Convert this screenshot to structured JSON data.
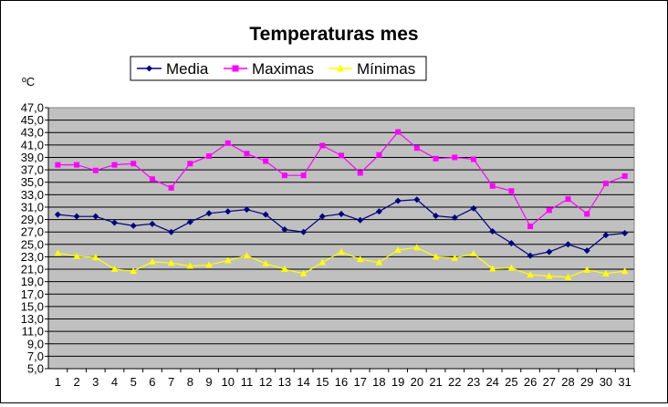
{
  "chart_data": {
    "type": "line",
    "title": "Temperaturas mes",
    "ylabel": "ºC",
    "xlabel": "",
    "ylim": [
      5.0,
      47.0
    ],
    "y_ticks": [
      "5,0",
      "7,0",
      "9,0",
      "11,0",
      "13,0",
      "15,0",
      "17,0",
      "19,0",
      "21,0",
      "23,0",
      "25,0",
      "27,0",
      "29,0",
      "31,0",
      "33,0",
      "35,0",
      "37,0",
      "39,0",
      "41,0",
      "43,0",
      "45,0",
      "47,0"
    ],
    "categories": [
      "1",
      "2",
      "3",
      "4",
      "5",
      "6",
      "7",
      "8",
      "9",
      "10",
      "11",
      "12",
      "13",
      "14",
      "15",
      "16",
      "17",
      "18",
      "19",
      "20",
      "21",
      "22",
      "23",
      "24",
      "25",
      "26",
      "27",
      "28",
      "29",
      "30",
      "31"
    ],
    "grid": true,
    "legend_position": "top",
    "plot_background": "#c0c0c0",
    "series": [
      {
        "name": "Media",
        "color": "#000080",
        "marker": "diamond",
        "values": [
          29.8,
          29.5,
          29.5,
          28.5,
          28.0,
          28.3,
          27.0,
          28.6,
          30.0,
          30.3,
          30.6,
          29.8,
          27.4,
          27.0,
          29.5,
          29.9,
          28.9,
          30.3,
          32.0,
          32.2,
          29.6,
          29.3,
          30.8,
          27.1,
          25.2,
          23.2,
          23.8,
          25.0,
          24.0,
          26.5,
          26.8
        ]
      },
      {
        "name": "Maximas",
        "color": "#ff00ff",
        "marker": "square",
        "values": [
          37.8,
          37.8,
          36.9,
          37.8,
          38.0,
          35.5,
          34.1,
          38.0,
          39.2,
          41.3,
          39.6,
          38.4,
          36.1,
          36.1,
          40.9,
          39.3,
          36.5,
          39.4,
          43.1,
          40.5,
          38.8,
          39.0,
          38.7,
          34.4,
          33.6,
          27.9,
          30.5,
          32.3,
          29.9,
          34.8,
          36.0
        ]
      },
      {
        "name": "Mínimas",
        "color": "#ffff00",
        "marker": "triangle",
        "values": [
          23.6,
          23.1,
          22.9,
          21.0,
          20.7,
          22.2,
          22.0,
          21.5,
          21.7,
          22.4,
          23.2,
          21.9,
          21.0,
          20.3,
          22.1,
          23.8,
          22.6,
          22.1,
          24.1,
          24.5,
          23.0,
          22.8,
          23.5,
          21.1,
          21.2,
          20.1,
          19.9,
          19.7,
          20.9,
          20.3,
          20.7
        ]
      }
    ]
  }
}
